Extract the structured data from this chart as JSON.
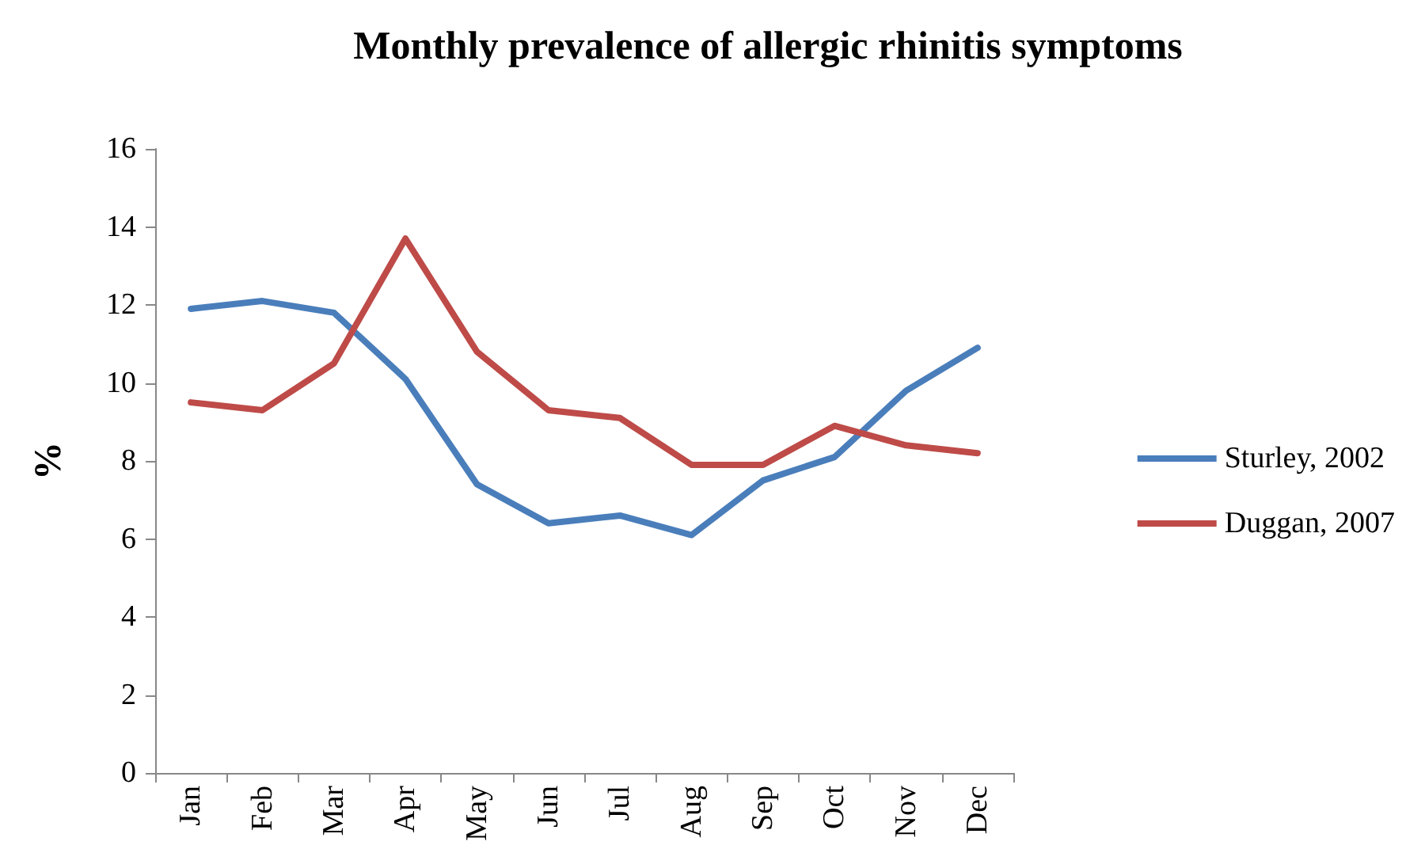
{
  "chart_data": {
    "type": "line",
    "title": "Monthly prevalence of allergic rhinitis symptoms",
    "ylabel": "%",
    "categories": [
      "Jan",
      "Feb",
      "Mar",
      "Apr",
      "May",
      "Jun",
      "Jul",
      "Aug",
      "Sep",
      "Oct",
      "Nov",
      "Dec"
    ],
    "series": [
      {
        "name": "Sturley, 2002",
        "color": "#4a7ebb",
        "values": [
          11.9,
          12.1,
          11.8,
          10.1,
          7.4,
          6.4,
          6.6,
          6.1,
          7.5,
          8.1,
          9.8,
          10.9
        ]
      },
      {
        "name": "Duggan, 2007",
        "color": "#be4b48",
        "values": [
          9.5,
          9.3,
          10.5,
          13.7,
          10.8,
          9.3,
          9.1,
          7.9,
          7.9,
          8.9,
          8.4,
          8.2
        ]
      }
    ],
    "ylim": [
      0,
      16
    ],
    "yticks": [
      0,
      2,
      4,
      6,
      8,
      10,
      12,
      14,
      16
    ],
    "grid": false,
    "legend": "right",
    "marker": "none",
    "line_style": "solid"
  }
}
